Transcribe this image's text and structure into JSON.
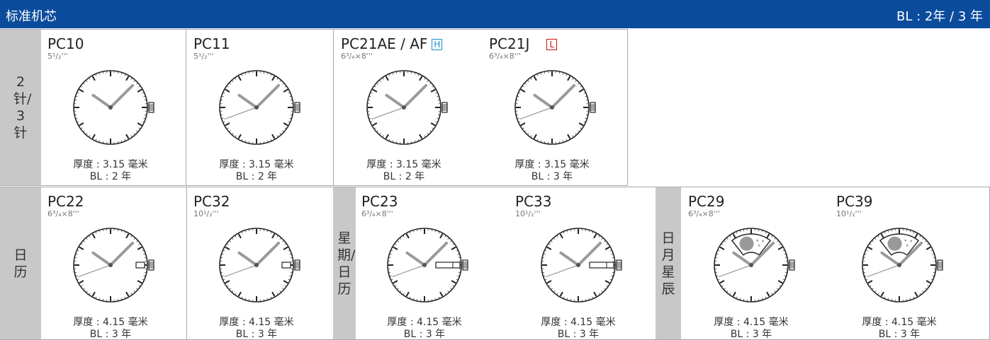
{
  "header": {
    "title": "标准机芯",
    "bl": "BL : 2年 / 3 年"
  },
  "groups": [
    {
      "label": "2针/3针",
      "movements": [
        {
          "model": "PC10",
          "size": "5¹/₂'''",
          "thickness": "厚度 : 3.15 毫米",
          "bl": "BL : 2 年"
        },
        {
          "model": "PC11",
          "size": "5¹/₂'''",
          "thickness": "厚度 : 3.15 毫米",
          "bl": "BL : 2 年"
        },
        {
          "model": "PC21AE / AF",
          "badge": "H",
          "size": "6³/₄×8'''",
          "thickness": "厚度 : 3.15 毫米",
          "bl": "BL : 2 年"
        },
        {
          "model": "PC21J",
          "badge": "L",
          "size": "6³/₄×8'''",
          "thickness": "厚度 : 3.15 毫米",
          "bl": "BL : 3 年"
        }
      ]
    },
    {
      "label": "日历",
      "movements": [
        {
          "model": "PC22",
          "size": "6³/₄×8'''",
          "thickness": "厚度 : 4.15 毫米",
          "bl": "BL : 3 年"
        },
        {
          "model": "PC32",
          "size": "10¹/₂'''",
          "thickness": "厚度 : 4.15 毫米",
          "bl": "BL : 3 年"
        }
      ]
    },
    {
      "label": "星期/日历",
      "movements": [
        {
          "model": "PC23",
          "size": "6³/₄×8'''",
          "thickness": "厚度 : 4.15 毫米",
          "bl": "BL : 3 年"
        },
        {
          "model": "PC33",
          "size": "10¹/₂'''",
          "thickness": "厚度 : 4.15 毫米",
          "bl": "BL : 3 年"
        }
      ]
    },
    {
      "label": "日月星辰",
      "movements": [
        {
          "model": "PC29",
          "size": "6³/₄×8'''",
          "thickness": "厚度 : 4.15 毫米",
          "bl": "BL : 3 年"
        },
        {
          "model": "PC39",
          "size": "10¹/₂'''",
          "thickness": "厚度 : 4.15 毫米",
          "bl": "BL : 3 年"
        }
      ]
    }
  ]
}
